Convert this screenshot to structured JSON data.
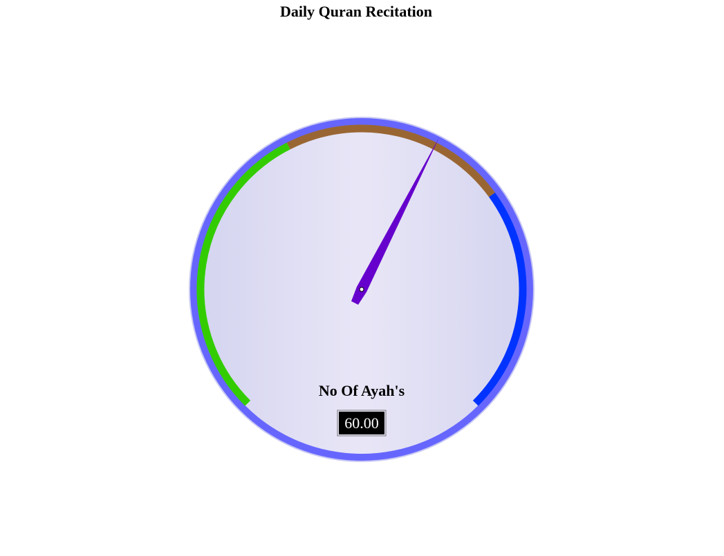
{
  "title": "Daily Quran Recitation",
  "chart_data": {
    "type": "gauge",
    "title": "Daily Quran Recitation",
    "label": "No Of Ayah's",
    "value": 60,
    "value_text": "60.00",
    "min": 0,
    "max": 100,
    "bands": [
      {
        "from": 0,
        "to": 40,
        "color": "#33cc00"
      },
      {
        "from": 40,
        "to": 70,
        "color": "#996633"
      },
      {
        "from": 70,
        "to": 100,
        "color": "#0033ff"
      }
    ],
    "colors": {
      "needle": "#6600cc",
      "outer_ring": "#6666ff",
      "face_edge": "#d4d4f0",
      "face_center": "#e8e6f6",
      "value_box_bg": "#000000",
      "value_box_text": "#ffffff"
    }
  }
}
